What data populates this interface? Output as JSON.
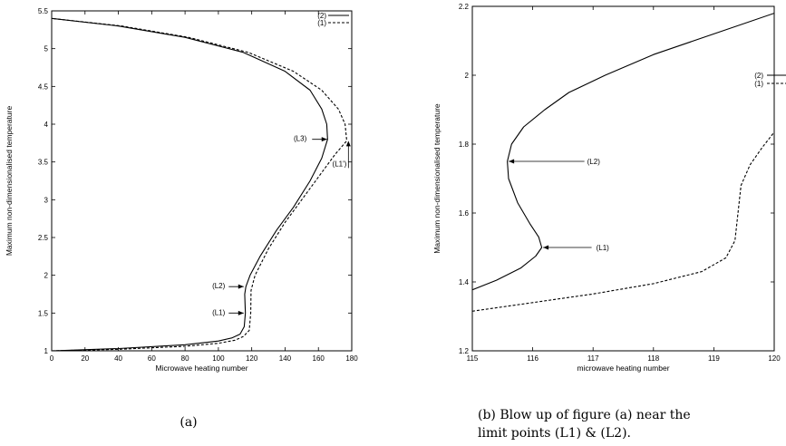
{
  "chart_data": [
    {
      "type": "line",
      "xlabel": "Microwave heating number",
      "ylabel": "Maximum non-dimensionalised temperature",
      "xlim": [
        0,
        180
      ],
      "ylim": [
        1,
        5.5
      ],
      "xticks": [
        "0",
        "20",
        "40",
        "60",
        "80",
        "100",
        "120",
        "140",
        "160",
        "180"
      ],
      "yticks": [
        "1",
        "1.5",
        "2",
        "2.5",
        "3",
        "3.5",
        "4",
        "4.5",
        "5",
        "5.5"
      ],
      "legend_position": "top-right",
      "series": [
        {
          "name": "(2)",
          "style": "solid",
          "points": [
            [
              0,
              1
            ],
            [
              40,
              1.03
            ],
            [
              80,
              1.08
            ],
            [
              100,
              1.13
            ],
            [
              108,
              1.17
            ],
            [
              113,
              1.22
            ],
            [
              115.5,
              1.32
            ],
            [
              116.2,
              1.5
            ],
            [
              116,
              1.62
            ],
            [
              115.8,
              1.75
            ],
            [
              116.5,
              1.85
            ],
            [
              119,
              2.0
            ],
            [
              125,
              2.25
            ],
            [
              135,
              2.6
            ],
            [
              145,
              2.9
            ],
            [
              155,
              3.25
            ],
            [
              162,
              3.55
            ],
            [
              165.5,
              3.8
            ],
            [
              165,
              4.0
            ],
            [
              162,
              4.2
            ],
            [
              155,
              4.45
            ],
            [
              140,
              4.7
            ],
            [
              115,
              4.95
            ],
            [
              80,
              5.15
            ],
            [
              40,
              5.3
            ],
            [
              0,
              5.4
            ]
          ]
        },
        {
          "name": "(1)",
          "style": "dashed",
          "points": [
            [
              0,
              1
            ],
            [
              40,
              1.02
            ],
            [
              80,
              1.06
            ],
            [
              100,
              1.1
            ],
            [
              110,
              1.14
            ],
            [
              115,
              1.19
            ],
            [
              118.5,
              1.27
            ],
            [
              119.4,
              1.5
            ],
            [
              119.6,
              1.8
            ],
            [
              122,
              2.0
            ],
            [
              130,
              2.35
            ],
            [
              140,
              2.7
            ],
            [
              150,
              3.0
            ],
            [
              160,
              3.3
            ],
            [
              170,
              3.6
            ],
            [
              177,
              3.78
            ],
            [
              176,
              4.0
            ],
            [
              172,
              4.2
            ],
            [
              162,
              4.45
            ],
            [
              145,
              4.7
            ],
            [
              118,
              4.95
            ],
            [
              82,
              5.15
            ],
            [
              42,
              5.3
            ],
            [
              0,
              5.4
            ]
          ]
        }
      ],
      "annotations": [
        {
          "label": "(L3)",
          "x": 166,
          "y": 3.8
        },
        {
          "label": "(L2)",
          "x": 116,
          "y": 1.85
        },
        {
          "label": "(L1)",
          "x": 116,
          "y": 1.5
        },
        {
          "label": "(L1')",
          "x": 178,
          "y": 3.78
        }
      ],
      "caption": "(a)"
    },
    {
      "type": "line",
      "xlabel": "microwave heating number",
      "ylabel": "Maximum non-dimensionalised temperature",
      "xlim": [
        115,
        120
      ],
      "ylim": [
        1.2,
        2.2
      ],
      "xticks": [
        "115",
        "116",
        "117",
        "118",
        "119",
        "120"
      ],
      "yticks": [
        "1.2",
        "1.4",
        "1.6",
        "1.8",
        "2",
        "2.2"
      ],
      "legend_position": "right",
      "series": [
        {
          "name": "(2)",
          "style": "solid",
          "points": [
            [
              115,
              1.377
            ],
            [
              115.4,
              1.405
            ],
            [
              115.8,
              1.44
            ],
            [
              116.05,
              1.475
            ],
            [
              116.15,
              1.5
            ],
            [
              116.1,
              1.53
            ],
            [
              115.95,
              1.57
            ],
            [
              115.75,
              1.63
            ],
            [
              115.6,
              1.7
            ],
            [
              115.58,
              1.75
            ],
            [
              115.65,
              1.8
            ],
            [
              115.85,
              1.85
            ],
            [
              116.2,
              1.9
            ],
            [
              116.6,
              1.95
            ],
            [
              117.2,
              2.0
            ],
            [
              118,
              2.06
            ],
            [
              119,
              2.12
            ],
            [
              120,
              2.18
            ]
          ]
        },
        {
          "name": "(1)",
          "style": "dashed",
          "points": [
            [
              115,
              1.315
            ],
            [
              116,
              1.34
            ],
            [
              117,
              1.365
            ],
            [
              118,
              1.395
            ],
            [
              118.8,
              1.43
            ],
            [
              119.2,
              1.47
            ],
            [
              119.35,
              1.52
            ],
            [
              119.4,
              1.6
            ],
            [
              119.45,
              1.68
            ],
            [
              119.6,
              1.74
            ],
            [
              119.8,
              1.79
            ],
            [
              120,
              1.835
            ]
          ]
        }
      ],
      "annotations": [
        {
          "label": "(L2)",
          "x": 115.58,
          "y": 1.75
        },
        {
          "label": "(L1)",
          "x": 116.15,
          "y": 1.5
        }
      ],
      "caption": "(b) Blow up of figure (a) near the limit points (L1) & (L2).",
      "caption_lines": [
        "(b) Blow up of figure (a) near the",
        "limit points (L1) & (L2)."
      ]
    }
  ]
}
